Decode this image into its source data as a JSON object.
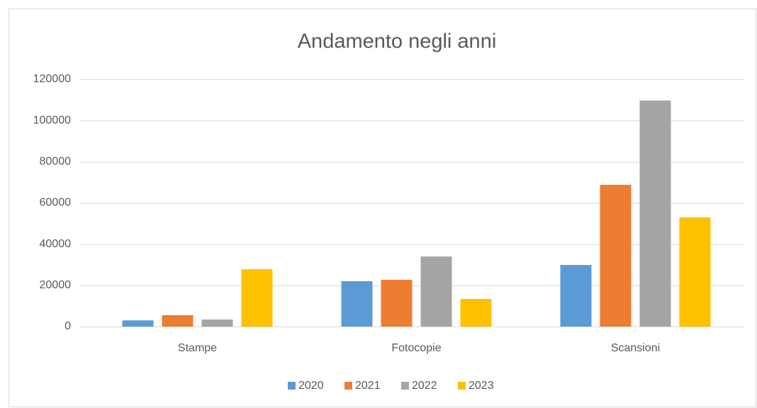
{
  "chart_data": {
    "type": "bar",
    "title": "Andamento negli anni",
    "categories": [
      "Stampe",
      "Fotocopie",
      "Scansioni"
    ],
    "series": [
      {
        "name": "2020",
        "color": "#5b9bd5",
        "values": [
          3000,
          22000,
          29900
        ]
      },
      {
        "name": "2021",
        "color": "#ed7d31",
        "values": [
          5500,
          22700,
          68800
        ]
      },
      {
        "name": "2022",
        "color": "#a5a5a5",
        "values": [
          3400,
          34000,
          109700
        ]
      },
      {
        "name": "2023",
        "color": "#ffc000",
        "values": [
          27800,
          13400,
          53000
        ]
      }
    ],
    "ylim": [
      0,
      120000
    ],
    "yticks": [
      0,
      20000,
      40000,
      60000,
      80000,
      100000,
      120000
    ],
    "grid": true,
    "legend": "bottom"
  }
}
